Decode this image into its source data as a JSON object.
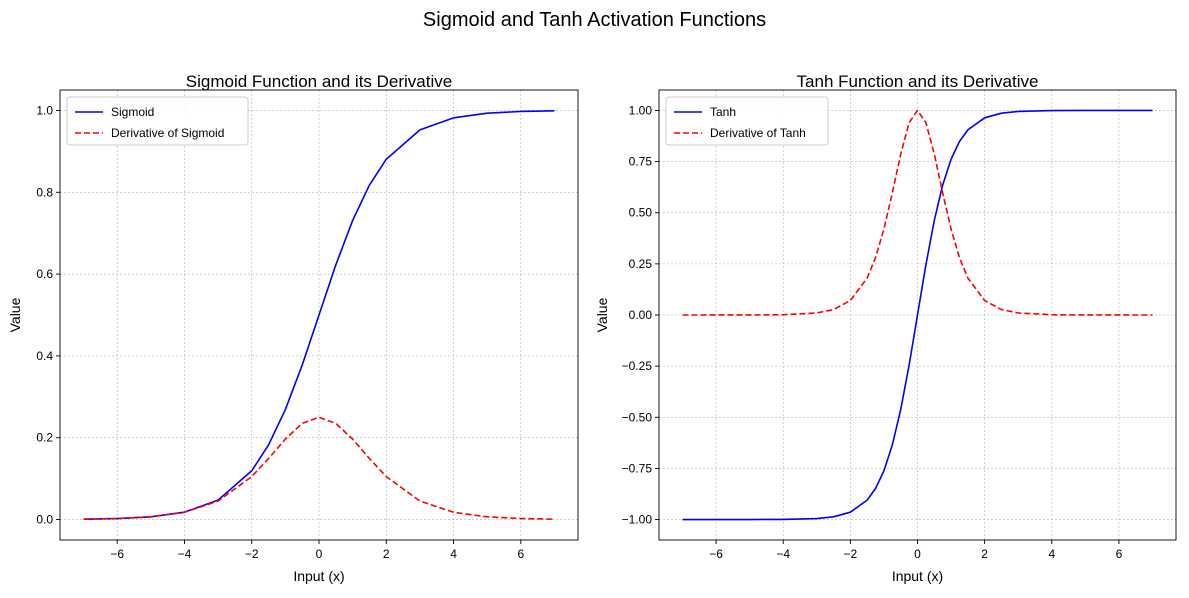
{
  "figure": {
    "suptitle": "Sigmoid and Tanh Activation Functions"
  },
  "chart_data": [
    {
      "type": "line",
      "title": "Sigmoid Function and its Derivative",
      "xlabel": "Input (x)",
      "ylabel": "Value",
      "xlim": [
        -7.7,
        7.7
      ],
      "ylim": [
        -0.05,
        1.05
      ],
      "xticks": [
        -6,
        -4,
        -2,
        0,
        2,
        4,
        6
      ],
      "xtick_labels": [
        "−6",
        "−4",
        "−2",
        "0",
        "2",
        "4",
        "6"
      ],
      "yticks": [
        0.0,
        0.2,
        0.4,
        0.6,
        0.8,
        1.0
      ],
      "ytick_labels": [
        "0.0",
        "0.2",
        "0.4",
        "0.6",
        "0.8",
        "1.0"
      ],
      "grid": true,
      "legend_position": "upper-left",
      "x": [
        -7,
        -6,
        -5,
        -4,
        -3,
        -2,
        -1.5,
        -1,
        -0.5,
        0,
        0.5,
        1,
        1.5,
        2,
        3,
        4,
        5,
        6,
        7
      ],
      "series": [
        {
          "name": "Sigmoid",
          "color": "#0000ff",
          "style": "solid",
          "values": [
            0.0009,
            0.0025,
            0.0067,
            0.018,
            0.0474,
            0.1192,
            0.1824,
            0.2689,
            0.3775,
            0.5,
            0.6225,
            0.7311,
            0.8176,
            0.8808,
            0.9526,
            0.982,
            0.9933,
            0.9975,
            0.9991
          ]
        },
        {
          "name": "Derivative of Sigmoid",
          "color": "#ff0000",
          "style": "dashed",
          "values": [
            0.0009,
            0.0025,
            0.0066,
            0.0177,
            0.0452,
            0.105,
            0.1491,
            0.1966,
            0.235,
            0.25,
            0.235,
            0.1966,
            0.1491,
            0.105,
            0.0452,
            0.0177,
            0.0066,
            0.0025,
            0.0009
          ]
        }
      ]
    },
    {
      "type": "line",
      "title": "Tanh Function and its Derivative",
      "xlabel": "Input (x)",
      "ylabel": "Value",
      "xlim": [
        -7.7,
        7.7
      ],
      "ylim": [
        -1.1,
        1.1
      ],
      "xticks": [
        -6,
        -4,
        -2,
        0,
        2,
        4,
        6
      ],
      "xtick_labels": [
        "−6",
        "−4",
        "−2",
        "0",
        "2",
        "4",
        "6"
      ],
      "yticks": [
        -1.0,
        -0.75,
        -0.5,
        -0.25,
        0.0,
        0.25,
        0.5,
        0.75,
        1.0
      ],
      "ytick_labels": [
        "−1.00",
        "−0.75",
        "−0.50",
        "−0.25",
        "0.00",
        "0.25",
        "0.50",
        "0.75",
        "1.00"
      ],
      "grid": true,
      "legend_position": "upper-left",
      "x": [
        -7,
        -5,
        -4,
        -3,
        -2.5,
        -2,
        -1.5,
        -1.25,
        -1,
        -0.75,
        -0.5,
        -0.25,
        0,
        0.25,
        0.5,
        0.75,
        1,
        1.25,
        1.5,
        2,
        2.5,
        3,
        4,
        5,
        7
      ],
      "series": [
        {
          "name": "Tanh",
          "color": "#0000ff",
          "style": "solid",
          "values": [
            -1.0,
            -0.9999,
            -0.9993,
            -0.9951,
            -0.9866,
            -0.964,
            -0.9051,
            -0.8483,
            -0.7616,
            -0.6351,
            -0.4621,
            -0.2449,
            0.0,
            0.2449,
            0.4621,
            0.6351,
            0.7616,
            0.8483,
            0.9051,
            0.964,
            0.9866,
            0.9951,
            0.9993,
            0.9999,
            1.0
          ]
        },
        {
          "name": "Derivative of Tanh",
          "color": "#ff0000",
          "style": "dashed",
          "values": [
            0.0,
            0.0002,
            0.0013,
            0.0099,
            0.0266,
            0.0707,
            0.1807,
            0.2805,
            0.42,
            0.5966,
            0.7864,
            0.94,
            1.0,
            0.94,
            0.7864,
            0.5966,
            0.42,
            0.2805,
            0.1807,
            0.0707,
            0.0266,
            0.0099,
            0.0013,
            0.0002,
            0.0
          ]
        }
      ]
    }
  ]
}
